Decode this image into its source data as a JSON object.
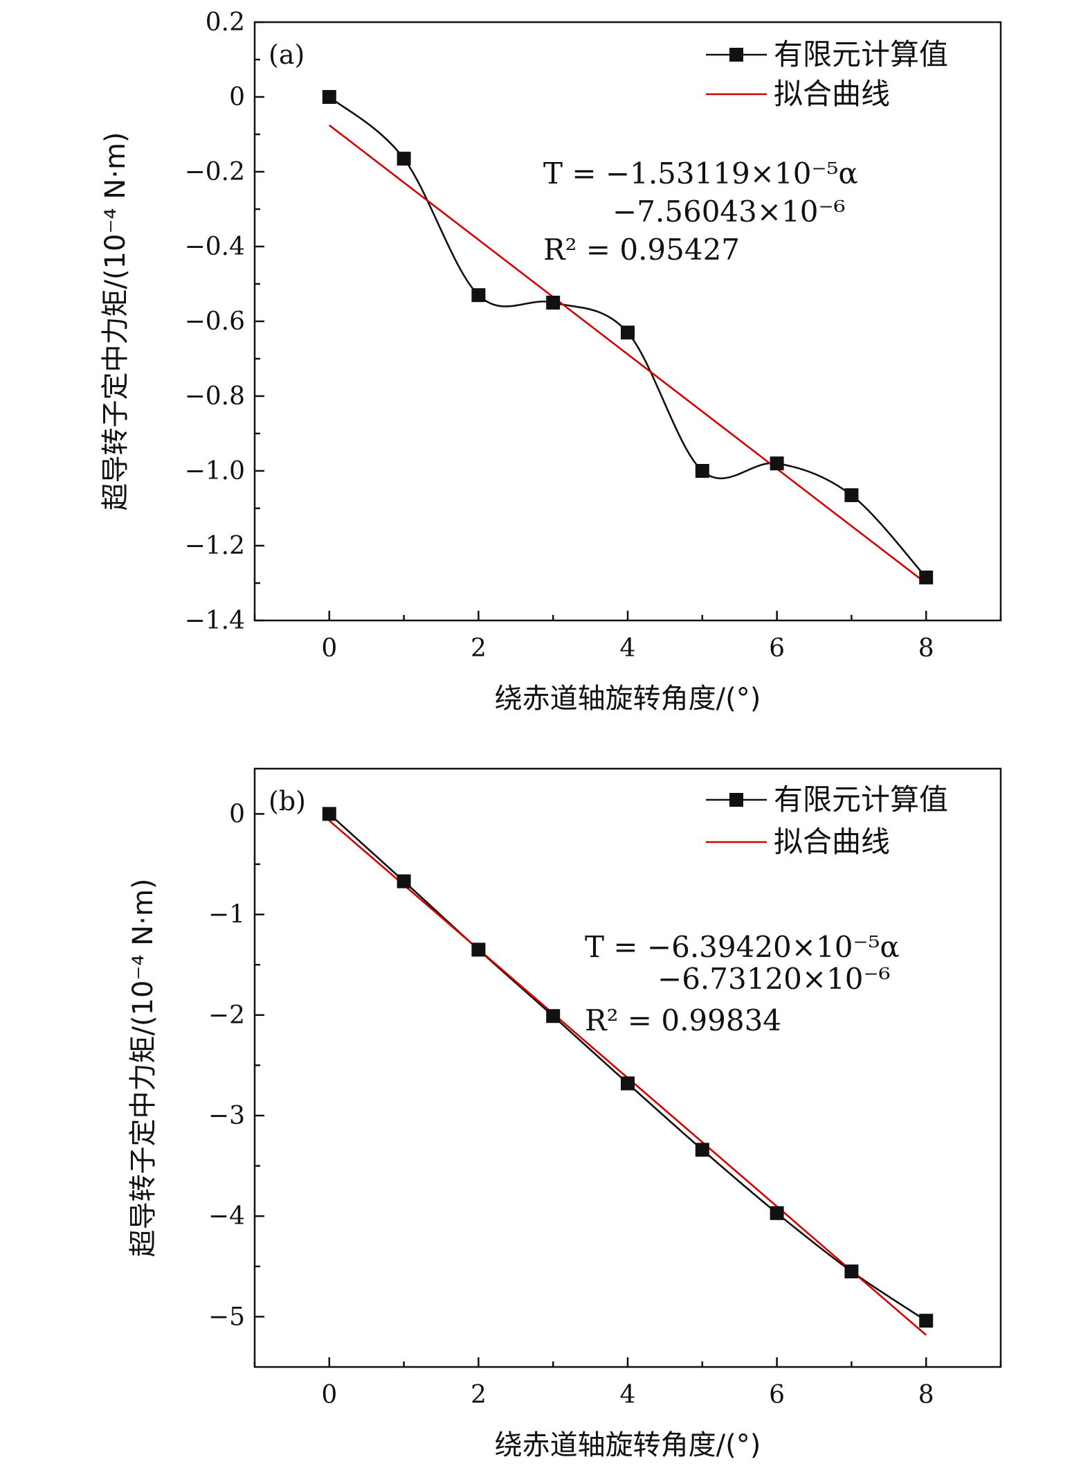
{
  "chart_data": [
    {
      "type": "line",
      "panel_label": "(a)",
      "xlabel": "绕赤道轴旋转角度/(°)",
      "ylabel": "超导转子定中力矩/(10⁻⁴ N·m)",
      "xlim": [
        -1,
        9
      ],
      "ylim": [
        -1.4,
        0.2
      ],
      "xticks": [
        0,
        2,
        4,
        6,
        8
      ],
      "xtick_labels": [
        "0",
        "2",
        "4",
        "6",
        "8"
      ],
      "yticks": [
        0.2,
        0,
        -0.2,
        -0.4,
        -0.6,
        -0.8,
        -1.0,
        -1.2,
        -1.4
      ],
      "ytick_labels": [
        "0.2",
        "0",
        "−0.2",
        "−0.4",
        "−0.6",
        "−0.8",
        "−1.0",
        "−1.2",
        "−1.4"
      ],
      "series": [
        {
          "name": "有限元计算值",
          "color": "#111111",
          "marker": "square",
          "x": [
            0,
            1,
            2,
            3,
            4,
            5,
            6,
            7,
            8
          ],
          "values": [
            0,
            -0.165,
            -0.53,
            -0.55,
            -0.63,
            -1.0,
            -0.98,
            -1.065,
            -1.285
          ]
        },
        {
          "name": "拟合曲线",
          "color": "#d40000",
          "marker": "none",
          "x": [
            0,
            8
          ],
          "values": [
            -0.0756,
            -1.3006
          ]
        }
      ],
      "legend": [
        "有限元计算值",
        "拟合曲线"
      ],
      "legend_position": "top-right",
      "annotation": {
        "line1": "T = −1.53119×10⁻⁵α",
        "line2": "−7.56043×10⁻⁶",
        "line3": "R² = 0.95427"
      }
    },
    {
      "type": "line",
      "panel_label": "(b)",
      "xlabel": "绕赤道轴旋转角度/(°)",
      "ylabel": "超导转子定中力矩/(10⁻⁴ N·m)",
      "xlim": [
        -1,
        9
      ],
      "ylim": [
        -5.5,
        0.45
      ],
      "xticks": [
        0,
        2,
        4,
        6,
        8
      ],
      "xtick_labels": [
        "0",
        "2",
        "4",
        "6",
        "8"
      ],
      "yticks": [
        0,
        -1,
        -2,
        -3,
        -4,
        -5
      ],
      "ytick_labels": [
        "0",
        "−1",
        "−2",
        "−3",
        "−4",
        "−5"
      ],
      "series": [
        {
          "name": "有限元计算值",
          "color": "#111111",
          "marker": "square",
          "x": [
            0,
            1,
            2,
            3,
            4,
            5,
            6,
            7,
            8
          ],
          "values": [
            0,
            -0.67,
            -1.35,
            -2.01,
            -2.68,
            -3.34,
            -3.97,
            -4.55,
            -5.04
          ]
        },
        {
          "name": "拟合曲线",
          "color": "#d40000",
          "marker": "none",
          "x": [
            0,
            8
          ],
          "values": [
            -0.0673,
            -5.1826
          ]
        }
      ],
      "legend": [
        "有限元计算值",
        "拟合曲线"
      ],
      "legend_position": "top-right",
      "annotation": {
        "line1": "T = −6.39420×10⁻⁵α",
        "line2": "−6.73120×10⁻⁶",
        "line3": "R² = 0.99834"
      }
    }
  ]
}
